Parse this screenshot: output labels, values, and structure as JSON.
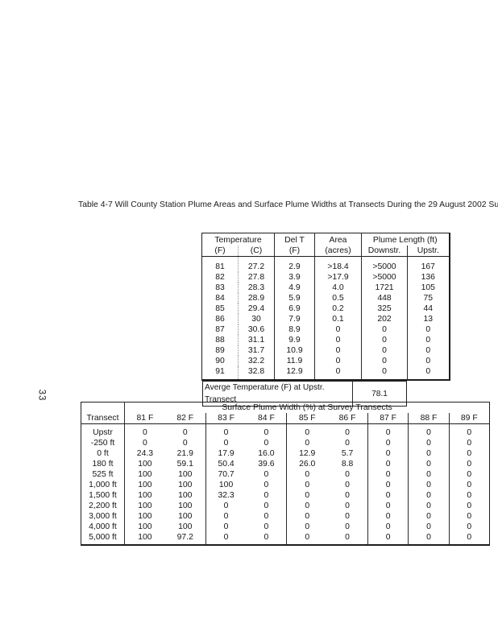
{
  "page": {
    "number": "33",
    "title": "Table 4-7  Will County Station Plume Areas and Surface Plume Widths at Transects During the 29 August 2002 Sur"
  },
  "plume_table": {
    "headers": {
      "temperature": "Temperature",
      "temp_f": "(F)",
      "temp_c": "(C)",
      "del_t": "Del T",
      "del_t_f": "(F)",
      "area": "Area",
      "area_acres": "(acres)",
      "plume_length": "Plume Length (ft)",
      "downstr": "Downstr.",
      "upstr": "Upstr."
    },
    "rows": [
      [
        "81",
        "27.2",
        "2.9",
        ">18.4",
        ">5000",
        "167"
      ],
      [
        "82",
        "27.8",
        "3.9",
        ">17.9",
        ">5000",
        "136"
      ],
      [
        "83",
        "28.3",
        "4.9",
        "4.0",
        "1721",
        "105"
      ],
      [
        "84",
        "28.9",
        "5.9",
        "0.5",
        "448",
        "75"
      ],
      [
        "85",
        "29.4",
        "6.9",
        "0.2",
        "325",
        "44"
      ],
      [
        "86",
        "30",
        "7.9",
        "0.1",
        "202",
        "13"
      ],
      [
        "87",
        "30.6",
        "8.9",
        "0",
        "0",
        "0"
      ],
      [
        "88",
        "31.1",
        "9.9",
        "0",
        "0",
        "0"
      ],
      [
        "89",
        "31.7",
        "10.9",
        "0",
        "0",
        "0"
      ],
      [
        "90",
        "32.2",
        "11.9",
        "0",
        "0",
        "0"
      ],
      [
        "91",
        "32.8",
        "12.9",
        "0",
        "0",
        "0"
      ]
    ]
  },
  "avg_temp": {
    "label": "Averge Temperature (F) at Upstr. Transect",
    "value": "78.1"
  },
  "width_table": {
    "span_header": "Surface Plume Width (%) at Survey Transects",
    "transect_header": "Transect",
    "col_headers": [
      "81 F",
      "82 F",
      "83 F",
      "84 F",
      "85 F",
      "86 F",
      "87 F",
      "88 F",
      "89 F"
    ],
    "rows": [
      {
        "transect": "Upstr",
        "values": [
          "0",
          "0",
          "0",
          "0",
          "0",
          "0",
          "0",
          "0",
          "0"
        ]
      },
      {
        "transect": "-250 ft",
        "values": [
          "0",
          "0",
          "0",
          "0",
          "0",
          "0",
          "0",
          "0",
          "0"
        ]
      },
      {
        "transect": "0 ft",
        "values": [
          "24.3",
          "21.9",
          "17.9",
          "16.0",
          "12.9",
          "5.7",
          "0",
          "0",
          "0"
        ]
      },
      {
        "transect": "180 ft",
        "values": [
          "100",
          "59.1",
          "50.4",
          "39.6",
          "26.0",
          "8.8",
          "0",
          "0",
          "0"
        ]
      },
      {
        "transect": "525 ft",
        "values": [
          "100",
          "100",
          "70.7",
          "0",
          "0",
          "0",
          "0",
          "0",
          "0"
        ]
      },
      {
        "transect": "1,000 ft",
        "values": [
          "100",
          "100",
          "100",
          "0",
          "0",
          "0",
          "0",
          "0",
          "0"
        ]
      },
      {
        "transect": "1,500 ft",
        "values": [
          "100",
          "100",
          "32.3",
          "0",
          "0",
          "0",
          "0",
          "0",
          "0"
        ]
      },
      {
        "transect": "2,200 ft",
        "values": [
          "100",
          "100",
          "0",
          "0",
          "0",
          "0",
          "0",
          "0",
          "0"
        ]
      },
      {
        "transect": "3,000 ft",
        "values": [
          "100",
          "100",
          "0",
          "0",
          "0",
          "0",
          "0",
          "0",
          "0"
        ]
      },
      {
        "transect": "4,000 ft",
        "values": [
          "100",
          "100",
          "0",
          "0",
          "0",
          "0",
          "0",
          "0",
          "0"
        ]
      },
      {
        "transect": "5,000 ft",
        "values": [
          "100",
          "97.2",
          "0",
          "0",
          "0",
          "0",
          "0",
          "0",
          "0"
        ]
      }
    ]
  }
}
